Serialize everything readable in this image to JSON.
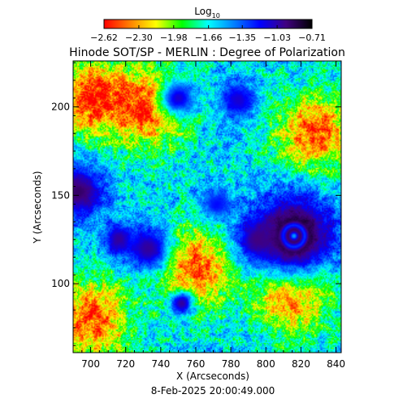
{
  "chart_data": {
    "type": "heatmap",
    "title": "Hinode SOT/SP - MERLIN : Degree of Polarization",
    "colorbar": {
      "label_main": "Log",
      "label_sub": "10",
      "tick_labels": [
        "-2.62",
        "-2.30",
        "-1.98",
        "-1.66",
        "-1.35",
        "-1.03",
        "-0.71"
      ],
      "range": [
        -2.62,
        -0.71
      ],
      "colormap": [
        "#ff0000",
        "#ff8000",
        "#ffff00",
        "#00ff00",
        "#00ffff",
        "#0080ff",
        "#0000ff",
        "#400080",
        "#000000"
      ]
    },
    "xlabel": "X (Arcseconds)",
    "ylabel": "Y (Arcseconds)",
    "xlim": [
      690,
      843
    ],
    "ylim": [
      61,
      226
    ],
    "x_ticks": [
      700,
      720,
      740,
      760,
      780,
      800,
      820,
      840
    ],
    "y_ticks": [
      100,
      150,
      200
    ],
    "grid": false,
    "features": [
      {
        "kind": "sunspot",
        "x": 816,
        "y": 127,
        "r": 11,
        "level": -0.71
      },
      {
        "kind": "pore",
        "x": 693,
        "y": 152,
        "r": 7,
        "level": -0.9
      },
      {
        "kind": "pore",
        "x": 795,
        "y": 125,
        "r": 5,
        "level": -0.95
      },
      {
        "kind": "pore",
        "x": 733,
        "y": 120,
        "r": 6,
        "level": -1.0
      },
      {
        "kind": "pore",
        "x": 716,
        "y": 125,
        "r": 4,
        "level": -1.0
      },
      {
        "kind": "pore",
        "x": 752,
        "y": 89,
        "r": 3,
        "level": -1.0
      },
      {
        "kind": "pore",
        "x": 784,
        "y": 204,
        "r": 5,
        "level": -1.1
      },
      {
        "kind": "pore",
        "x": 750,
        "y": 205,
        "r": 5,
        "level": -1.1
      },
      {
        "kind": "pore",
        "x": 772,
        "y": 145,
        "r": 4,
        "level": -1.2
      }
    ],
    "quiet_regions": [
      {
        "x": 700,
        "y": 205
      },
      {
        "x": 735,
        "y": 200
      },
      {
        "x": 828,
        "y": 185
      },
      {
        "x": 815,
        "y": 95
      },
      {
        "x": 700,
        "y": 80
      },
      {
        "x": 760,
        "y": 110
      }
    ]
  },
  "timestamp": "8-Feb-2025 20:00:49.000"
}
